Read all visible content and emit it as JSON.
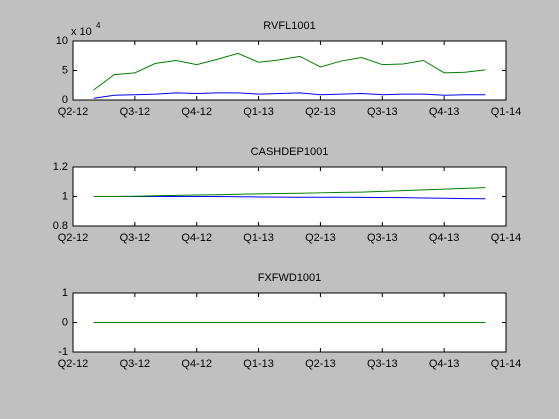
{
  "chart_data": [
    {
      "type": "line",
      "title": "RVFL1001",
      "y_multiplier": "x 10",
      "y_multiplier_exponent": "4",
      "x": [
        1,
        2,
        3,
        4,
        5,
        6,
        7,
        8,
        9,
        10,
        11,
        12,
        13,
        14,
        15,
        16,
        17,
        18,
        19,
        20
      ],
      "series": [
        {
          "color": "#0000ff",
          "values": [
            0.3,
            0.8,
            0.9,
            1.0,
            1.2,
            1.1,
            1.2,
            1.2,
            1.0,
            1.1,
            1.2,
            0.9,
            1.0,
            1.1,
            0.9,
            1.0,
            1.0,
            0.8,
            0.9,
            0.9
          ]
        },
        {
          "color": "#008000",
          "values": [
            1.7,
            4.3,
            4.6,
            6.2,
            6.7,
            6.0,
            6.9,
            7.9,
            6.4,
            6.8,
            7.4,
            5.6,
            6.6,
            7.2,
            6.0,
            6.1,
            6.7,
            4.6,
            4.7,
            5.1
          ]
        }
      ],
      "xlim": [
        0,
        21
      ],
      "xticks": [
        {
          "value": 0,
          "label": "Q2-12"
        },
        {
          "value": 3,
          "label": "Q3-12"
        },
        {
          "value": 6,
          "label": "Q4-12"
        },
        {
          "value": 9,
          "label": "Q1-13"
        },
        {
          "value": 12,
          "label": "Q2-13"
        },
        {
          "value": 15,
          "label": "Q3-13"
        },
        {
          "value": 18,
          "label": "Q4-13"
        },
        {
          "value": 21,
          "label": "Q1-14"
        }
      ],
      "ylim": [
        0,
        10
      ],
      "yticks": [
        0,
        5,
        10
      ]
    },
    {
      "type": "line",
      "title": "CASHDEP1001",
      "x": [
        1,
        2,
        3,
        4,
        5,
        6,
        7,
        8,
        9,
        10,
        11,
        12,
        13,
        14,
        15,
        16,
        17,
        18,
        19,
        20
      ],
      "series": [
        {
          "color": "#0000ff",
          "values": [
            1,
            1,
            1,
            1,
            1,
            1,
            1,
            0.998,
            0.997,
            0.996,
            0.995,
            0.995,
            0.995,
            0.994,
            0.993,
            0.992,
            0.99,
            0.988,
            0.986,
            0.985
          ]
        },
        {
          "color": "#008000",
          "values": [
            1,
            1,
            1.002,
            1.005,
            1.008,
            1.01,
            1.012,
            1.015,
            1.018,
            1.02,
            1.022,
            1.025,
            1.028,
            1.03,
            1.035,
            1.04,
            1.045,
            1.05,
            1.055,
            1.06
          ]
        }
      ],
      "xlim": [
        0,
        21
      ],
      "xticks": [
        {
          "value": 0,
          "label": "Q2-12"
        },
        {
          "value": 3,
          "label": "Q3-12"
        },
        {
          "value": 6,
          "label": "Q4-12"
        },
        {
          "value": 9,
          "label": "Q1-13"
        },
        {
          "value": 12,
          "label": "Q2-13"
        },
        {
          "value": 15,
          "label": "Q3-13"
        },
        {
          "value": 18,
          "label": "Q4-13"
        },
        {
          "value": 21,
          "label": "Q1-14"
        }
      ],
      "ylim": [
        0.8,
        1.2
      ],
      "yticks": [
        0.8,
        1,
        1.2
      ]
    },
    {
      "type": "line",
      "title": "FXFWD1001",
      "x": [
        1,
        2,
        3,
        4,
        5,
        6,
        7,
        8,
        9,
        10,
        11,
        12,
        13,
        14,
        15,
        16,
        17,
        18,
        19,
        20
      ],
      "series": [
        {
          "color": "#0000ff",
          "values": [
            0,
            0,
            0,
            0,
            0,
            0,
            0,
            0,
            0,
            0,
            0,
            0,
            0,
            0,
            0,
            0,
            0,
            0,
            0,
            0
          ]
        },
        {
          "color": "#008000",
          "values": [
            0,
            0,
            0,
            0,
            0,
            0,
            0,
            0,
            0,
            0,
            0,
            0,
            0,
            0,
            0,
            0,
            0,
            0,
            0,
            0
          ]
        }
      ],
      "xlim": [
        0,
        21
      ],
      "xticks": [
        {
          "value": 0,
          "label": "Q2-12"
        },
        {
          "value": 3,
          "label": "Q3-12"
        },
        {
          "value": 6,
          "label": "Q4-12"
        },
        {
          "value": 9,
          "label": "Q1-13"
        },
        {
          "value": 12,
          "label": "Q2-13"
        },
        {
          "value": 15,
          "label": "Q3-13"
        },
        {
          "value": 18,
          "label": "Q4-13"
        },
        {
          "value": 21,
          "label": "Q1-14"
        }
      ],
      "ylim": [
        -1,
        1
      ],
      "yticks": [
        -1,
        0,
        1
      ]
    }
  ]
}
